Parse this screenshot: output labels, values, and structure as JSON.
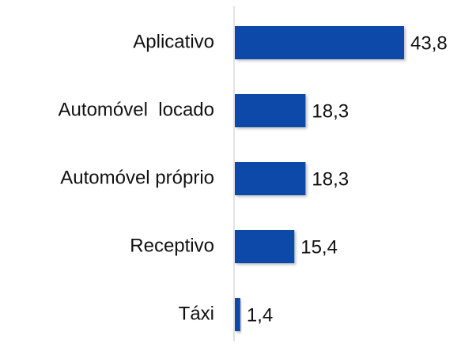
{
  "chart_data": {
    "type": "bar",
    "orientation": "horizontal",
    "categories": [
      "Aplicativo",
      "Automóvel  locado",
      "Automóvel próprio",
      "Receptivo",
      "Táxi"
    ],
    "values": [
      43.8,
      18.3,
      18.3,
      15.4,
      1.4
    ],
    "value_labels": [
      "43,8",
      "18,3",
      "18,3",
      "15,4",
      "1,4"
    ],
    "color": "#0b48a8"
  }
}
